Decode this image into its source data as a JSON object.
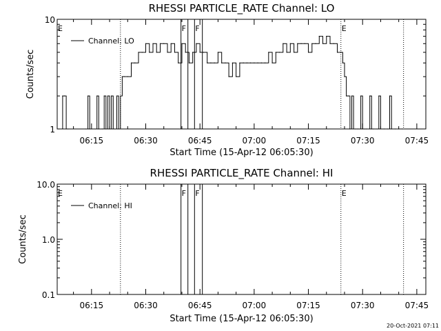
{
  "footer": {
    "timestamp": "20-Oct-2021 07:11"
  },
  "chart_data": [
    {
      "type": "line",
      "title": "RHESSI PARTICLE_RATE Channel: LO",
      "xlabel": "Start Time (15-Apr-12 06:05:30)",
      "ylabel": "Counts/sec",
      "y_scale": "log",
      "xlim": [
        "06:05:30",
        "07:47:30"
      ],
      "ylim": [
        1,
        10
      ],
      "x_ticks": [
        "06:15",
        "06:30",
        "06:45",
        "07:00",
        "07:15",
        "07:30",
        "07:45"
      ],
      "y_ticks": [
        "1",
        "10"
      ],
      "legend": {
        "position": "top-left",
        "entries": [
          "Channel: LO"
        ]
      },
      "markers": [
        {
          "label": "E",
          "time": "06:05:30",
          "style": "dotted"
        },
        {
          "label": "",
          "time": "06:23:00",
          "style": "dotted"
        },
        {
          "label": "F",
          "time": "06:39:45",
          "style": "solid"
        },
        {
          "label": "",
          "time": "06:41:40",
          "style": "solid"
        },
        {
          "label": "F",
          "time": "06:43:30",
          "style": "solid"
        },
        {
          "label": "",
          "time": "06:45:40",
          "style": "solid"
        },
        {
          "label": "E",
          "time": "07:24:00",
          "style": "dotted"
        },
        {
          "label": "",
          "time": "07:41:20",
          "style": "dotted"
        }
      ],
      "series": [
        {
          "name": "Channel: LO",
          "x": [
            "06:06:00",
            "06:07:00",
            "06:07:30",
            "06:08:00",
            "06:08:30",
            "06:13:30",
            "06:14:00",
            "06:14:30",
            "06:16:00",
            "06:16:30",
            "06:17:00",
            "06:18:00",
            "06:18:30",
            "06:19:00",
            "06:19:30",
            "06:20:00",
            "06:20:30",
            "06:21:00",
            "06:21:30",
            "06:22:00",
            "06:22:30",
            "06:23:00",
            "06:23:30",
            "06:24:00",
            "06:25:00",
            "06:26:00",
            "06:27:00",
            "06:28:00",
            "06:29:00",
            "06:30:00",
            "06:31:00",
            "06:32:00",
            "06:33:00",
            "06:34:00",
            "06:35:00",
            "06:36:00",
            "06:37:00",
            "06:38:00",
            "06:39:00",
            "06:40:00",
            "06:41:00",
            "06:42:00",
            "06:43:00",
            "06:44:00",
            "06:45:00",
            "06:46:00",
            "06:47:00",
            "06:48:00",
            "06:49:00",
            "06:50:00",
            "06:51:00",
            "06:52:00",
            "06:53:00",
            "06:54:00",
            "06:55:00",
            "06:56:00",
            "06:57:00",
            "06:58:00",
            "06:59:00",
            "07:00:00",
            "07:01:00",
            "07:02:00",
            "07:03:00",
            "07:04:00",
            "07:05:00",
            "07:06:00",
            "07:07:00",
            "07:08:00",
            "07:09:00",
            "07:10:00",
            "07:11:00",
            "07:12:00",
            "07:13:00",
            "07:14:00",
            "07:15:00",
            "07:16:00",
            "07:17:00",
            "07:18:00",
            "07:19:00",
            "07:20:00",
            "07:21:00",
            "07:22:00",
            "07:23:00",
            "07:24:00",
            "07:24:30",
            "07:25:00",
            "07:25:30",
            "07:26:00",
            "07:26:30",
            "07:27:00",
            "07:27:30",
            "07:28:00",
            "07:28:30",
            "07:29:00",
            "07:29:30",
            "07:30:00",
            "07:30:30",
            "07:31:00",
            "07:32:00",
            "07:32:30",
            "07:33:00",
            "07:34:00",
            "07:34:30",
            "07:35:00",
            "07:36:00",
            "07:37:00",
            "07:37:30",
            "07:38:00",
            "07:39:00",
            "07:40:00",
            "07:41:00"
          ],
          "values": [
            1,
            2,
            2,
            1,
            1,
            1,
            2,
            1,
            1,
            2,
            1,
            1,
            2,
            1,
            2,
            1,
            2,
            1,
            1,
            2,
            1,
            2,
            3,
            3,
            3,
            4,
            4,
            5,
            5,
            6,
            5,
            6,
            5,
            6,
            6,
            5,
            6,
            5,
            4,
            6,
            5,
            4,
            5,
            6,
            5,
            5,
            4,
            4,
            4,
            5,
            4,
            4,
            3,
            4,
            3,
            4,
            4,
            4,
            4,
            4,
            4,
            4,
            4,
            5,
            4,
            5,
            5,
            6,
            5,
            6,
            5,
            6,
            6,
            6,
            5,
            6,
            6,
            7,
            6,
            7,
            6,
            6,
            5,
            5,
            4,
            3,
            2,
            2,
            1,
            2,
            1,
            1,
            1,
            1,
            2,
            1,
            1,
            1,
            2,
            1,
            1,
            1,
            2,
            1,
            1,
            1,
            2,
            1,
            1,
            1,
            1
          ]
        }
      ]
    },
    {
      "type": "line",
      "title": "RHESSI PARTICLE_RATE Channel: HI",
      "xlabel": "Start Time (15-Apr-12 06:05:30)",
      "ylabel": "Counts/sec",
      "y_scale": "log",
      "xlim": [
        "06:05:30",
        "07:47:30"
      ],
      "ylim": [
        0.1,
        10
      ],
      "x_ticks": [
        "06:15",
        "06:30",
        "06:45",
        "07:00",
        "07:15",
        "07:30",
        "07:45"
      ],
      "y_ticks": [
        "0.1",
        "1.0",
        "10.0"
      ],
      "legend": {
        "position": "top-left",
        "entries": [
          "Channel: HI"
        ]
      },
      "markers": [
        {
          "label": "E",
          "time": "06:05:30",
          "style": "dotted"
        },
        {
          "label": "",
          "time": "06:23:00",
          "style": "dotted"
        },
        {
          "label": "F",
          "time": "06:39:45",
          "style": "solid"
        },
        {
          "label": "",
          "time": "06:41:40",
          "style": "solid"
        },
        {
          "label": "F",
          "time": "06:43:30",
          "style": "solid"
        },
        {
          "label": "",
          "time": "06:45:40",
          "style": "solid"
        },
        {
          "label": "E",
          "time": "07:24:00",
          "style": "dotted"
        },
        {
          "label": "",
          "time": "07:41:20",
          "style": "dotted"
        }
      ],
      "series": [
        {
          "name": "Channel: HI",
          "x": [],
          "values": []
        }
      ]
    }
  ]
}
